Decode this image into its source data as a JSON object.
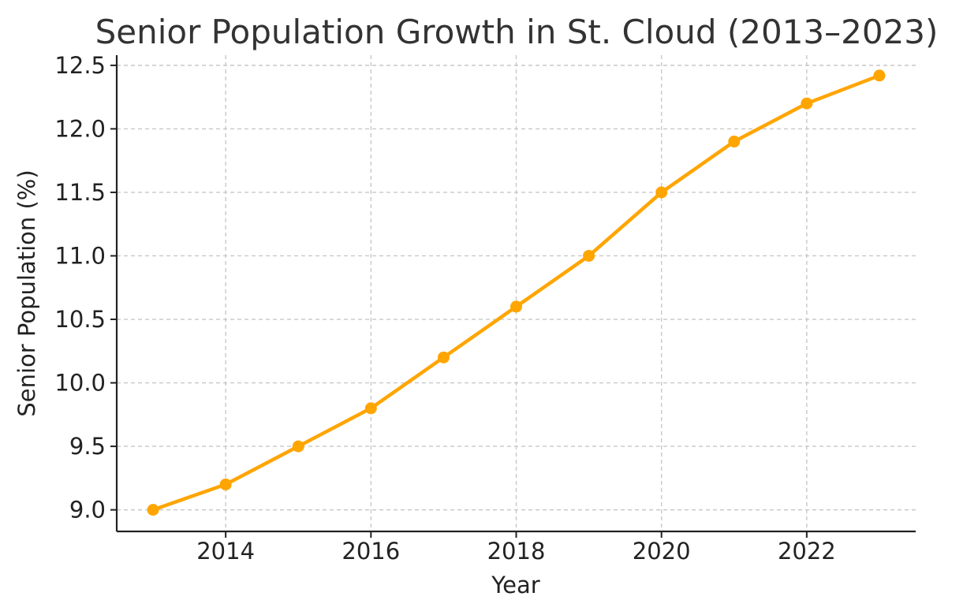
{
  "chart_data": {
    "type": "line",
    "title": "Senior Population Growth in St. Cloud (2013–2023)",
    "xlabel": "Year",
    "ylabel": "Senior Population (%)",
    "x": [
      2013,
      2014,
      2015,
      2016,
      2017,
      2018,
      2019,
      2020,
      2021,
      2022,
      2023
    ],
    "series": [
      {
        "values": [
          9.0,
          9.2,
          9.5,
          9.8,
          10.2,
          10.6,
          11.0,
          11.5,
          11.9,
          12.2,
          12.42
        ]
      }
    ],
    "xlim": [
      2012.5,
      2023.5
    ],
    "ylim": [
      8.83,
      12.58
    ],
    "x_ticks": [
      "2014",
      "2016",
      "2018",
      "2020",
      "2022"
    ],
    "y_ticks": [
      "9.0",
      "9.5",
      "10.0",
      "10.5",
      "11.0",
      "11.5",
      "12.0",
      "12.5"
    ],
    "grid": true,
    "line_color": "#FFA500"
  }
}
